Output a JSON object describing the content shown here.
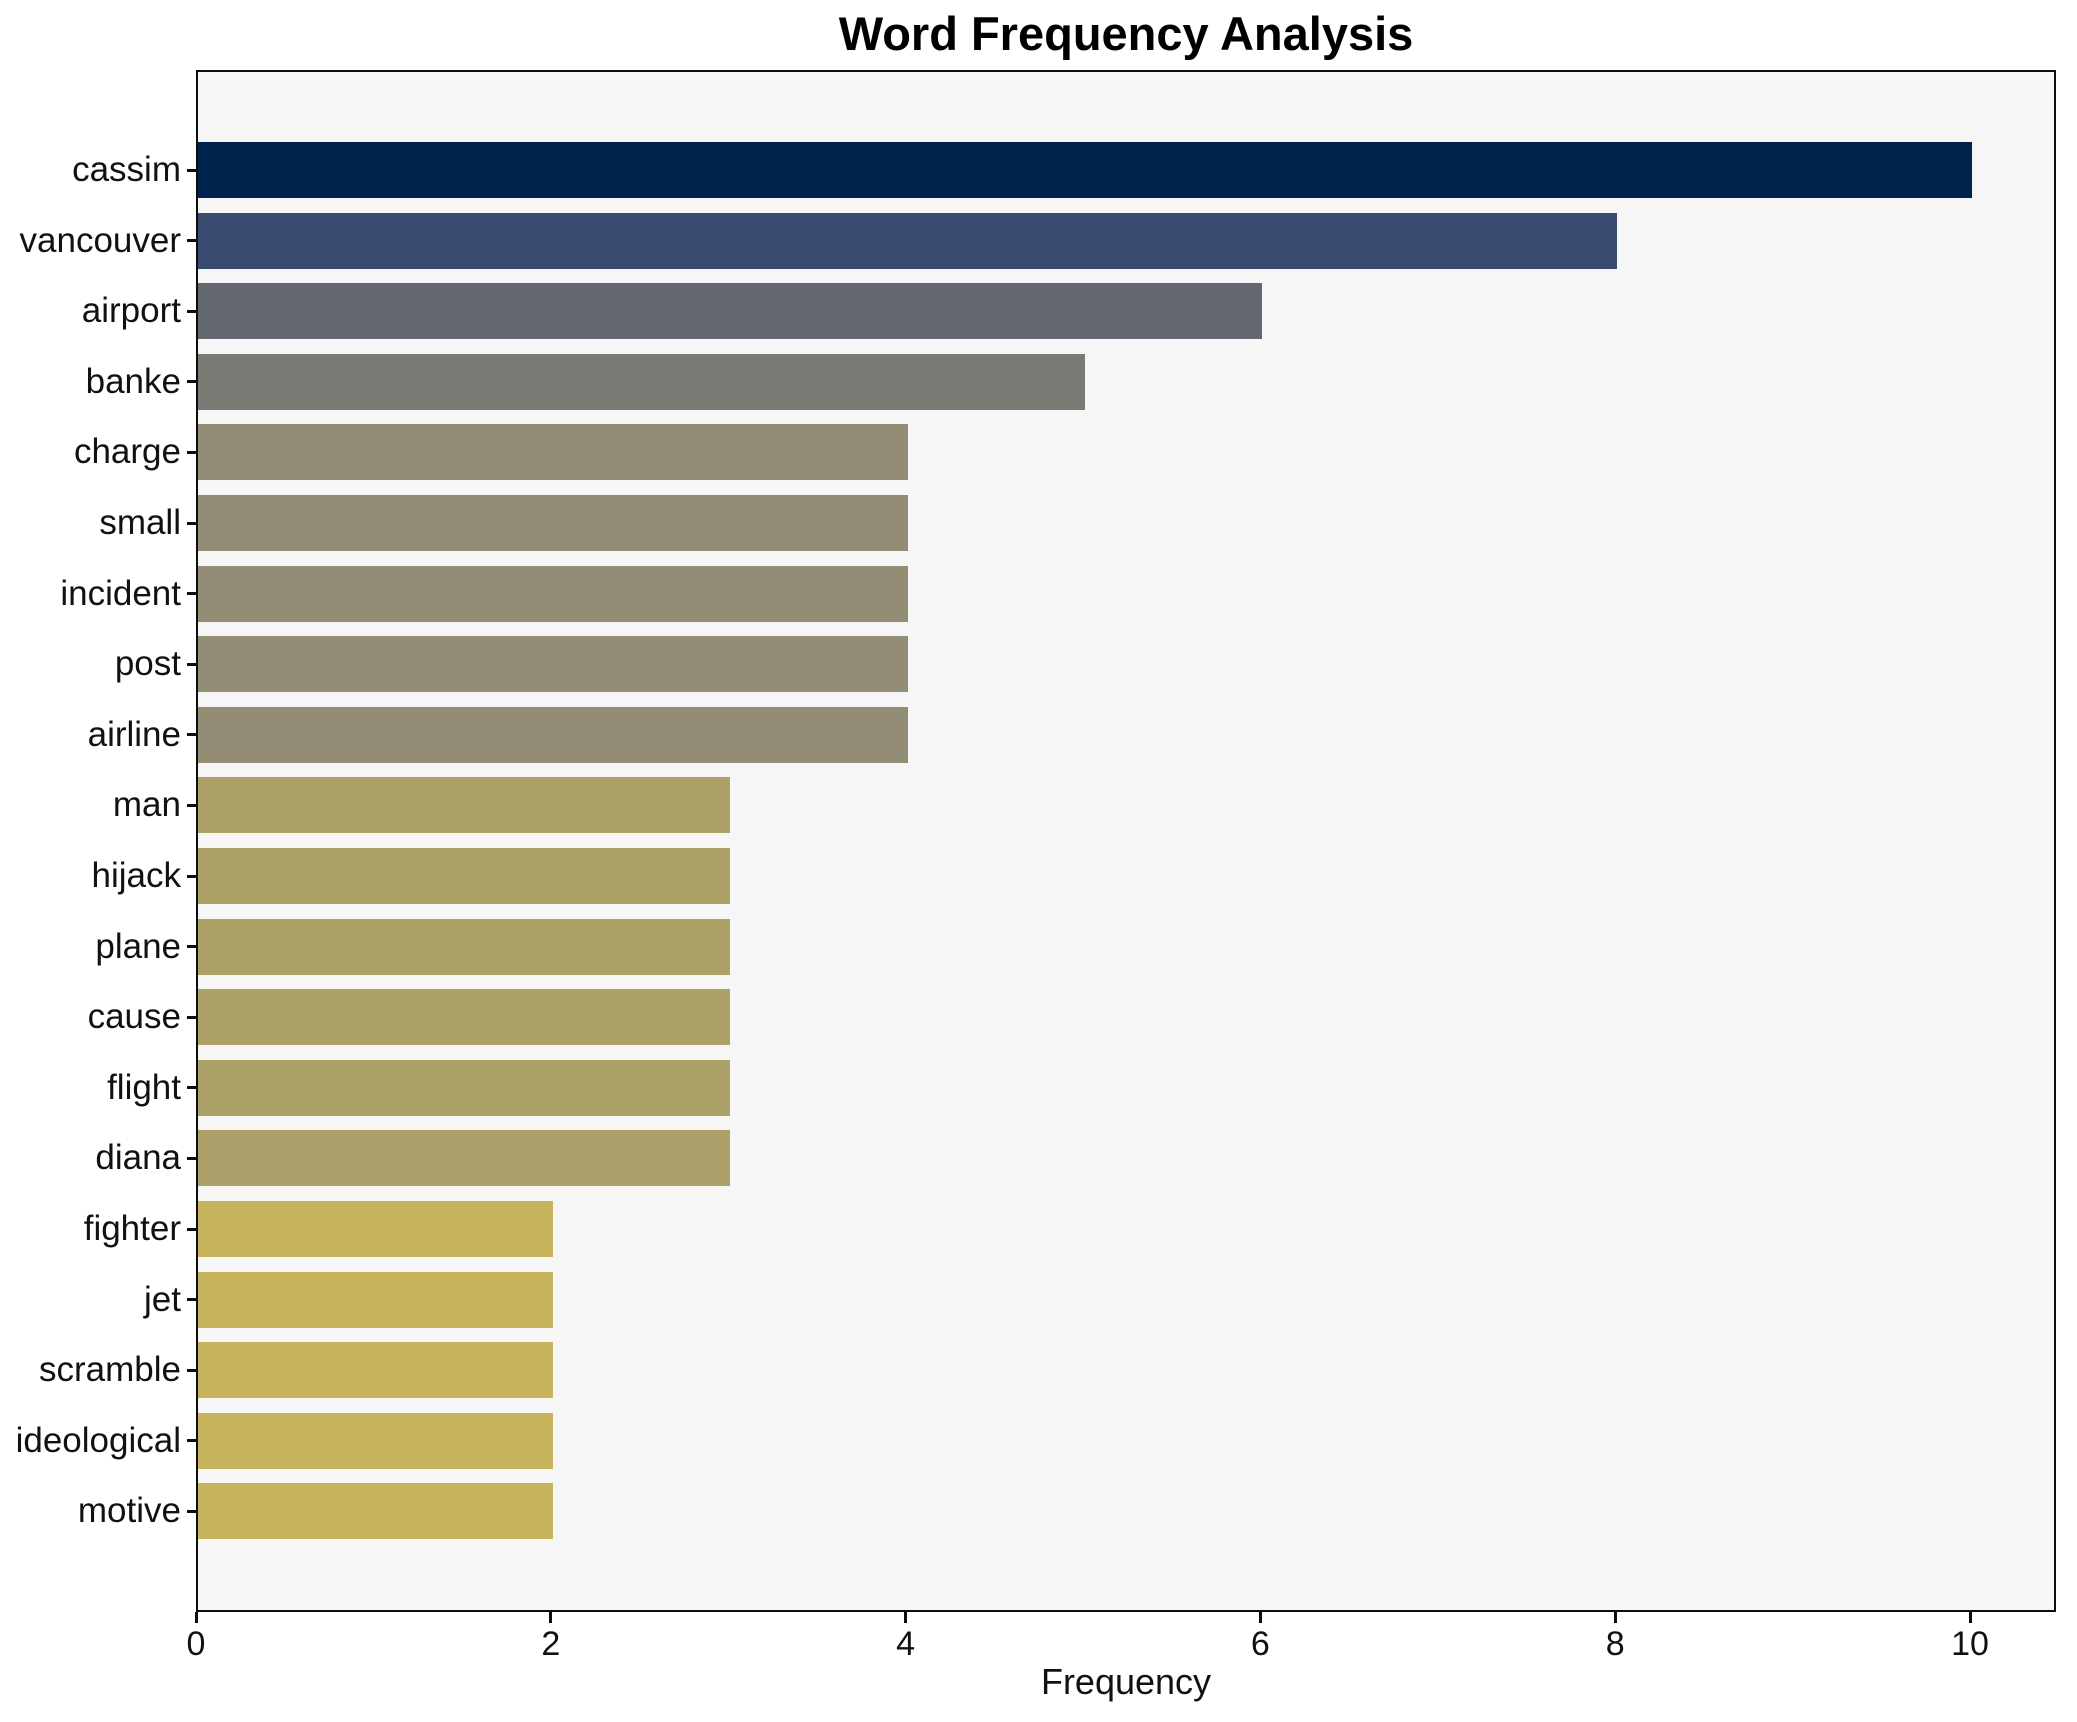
{
  "title": "Word Frequency Analysis",
  "chart_data": {
    "type": "bar",
    "orientation": "horizontal",
    "title": "Word Frequency Analysis",
    "xlabel": "Frequency",
    "ylabel": "",
    "xlim": [
      0,
      10.5
    ],
    "xticks": [
      0,
      2,
      4,
      6,
      8,
      10
    ],
    "grid": false,
    "legend": "none",
    "plot_background": "#f7f6f6",
    "spine_color": "#0d0d0d",
    "categories": [
      "cassim",
      "vancouver",
      "airport",
      "banke",
      "charge",
      "small",
      "incident",
      "post",
      "airline",
      "man",
      "hijack",
      "plane",
      "cause",
      "flight",
      "diana",
      "fighter",
      "jet",
      "scramble",
      "ideological",
      "motive"
    ],
    "values": [
      10,
      8,
      6,
      5,
      4,
      4,
      4,
      4,
      4,
      3,
      3,
      3,
      3,
      3,
      3,
      2,
      2,
      2,
      2,
      2
    ],
    "bar_colors": [
      "#00234e",
      "#3a4a6e",
      "#636870",
      "#7a7973",
      "#938d75",
      "#938d75",
      "#938d75",
      "#938d75",
      "#938d75",
      "#aca166",
      "#aca166",
      "#aca166",
      "#aca166",
      "#aca166",
      "#aba069",
      "#c9b45e",
      "#c9b45e",
      "#c9b45e",
      "#c9b45e",
      "#c9b45e"
    ]
  }
}
